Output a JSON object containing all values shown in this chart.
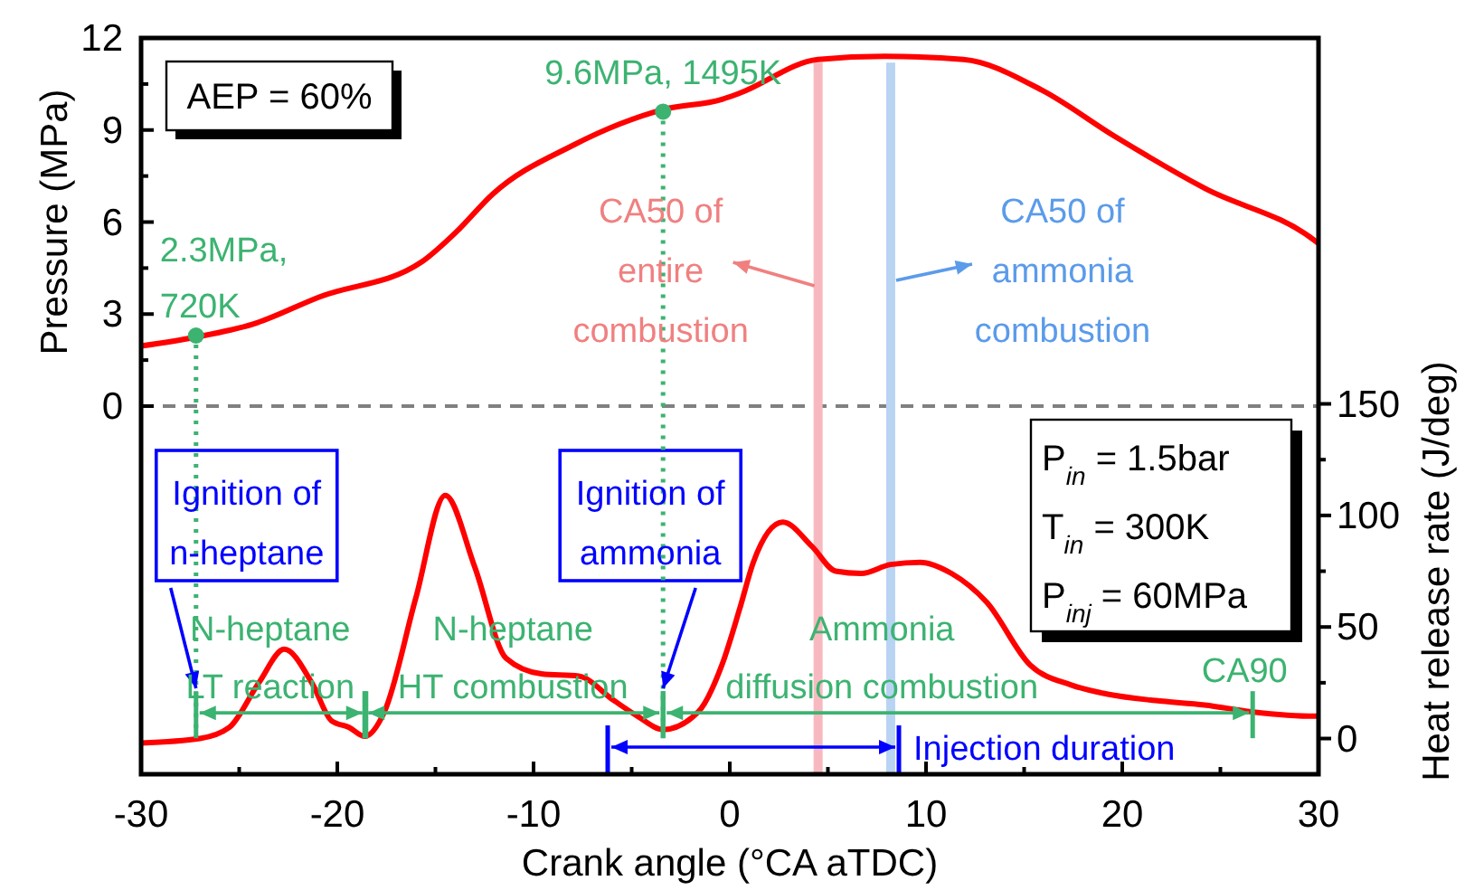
{
  "chart_data": {
    "type": "line",
    "xlabel": "Crank angle (°CA aTDC)",
    "ylabel": "Pressure (MPa)",
    "y2label": "Heat release rate (J/deg)",
    "xlim": [
      -30,
      30
    ],
    "xticks": [
      -30,
      {
        "value": -25,
        "label": null
      },
      -20,
      {
        "value": -15,
        "label": null
      },
      -10,
      {
        "value": -5,
        "label": null
      },
      0,
      {
        "value": 5,
        "label": null
      },
      10,
      {
        "value": 15,
        "label": null
      },
      20,
      {
        "value": 25,
        "label": null
      },
      30
    ],
    "ylim": [
      -12,
      12
    ],
    "yticks": [
      0,
      {
        "value": 1.5,
        "label": null
      },
      3,
      {
        "value": 4.5,
        "label": null
      },
      6,
      {
        "value": 7.5,
        "label": null
      },
      9,
      {
        "value": 10.5,
        "label": null
      },
      12
    ],
    "y2lim": [
      -16,
      314
    ],
    "y2ticks": [
      0,
      {
        "value": 25,
        "label": null
      },
      50,
      {
        "value": 75,
        "label": null
      },
      100,
      {
        "value": 125,
        "label": null
      },
      150
    ],
    "series": [
      {
        "color": "#ff0000",
        "x": [
          -30,
          -27.2,
          -24.3,
          -20.9,
          -15.7,
          -13.9,
          -12.1,
          -8,
          -5.6,
          -3.4,
          -0.4,
          0.5,
          4.5,
          7.9,
          11.9,
          15.9,
          19.6,
          24.2,
          29.8,
          30
        ],
        "values": [
          1.96,
          2.25,
          2.67,
          3.56,
          4.7,
          5.7,
          6.9,
          8.5,
          9.2,
          9.67,
          10,
          10.2,
          11.3,
          11.4,
          11.3,
          10.3,
          8.8,
          7.1,
          5.4,
          5.3
        ]
      },
      {
        "axis": "y2",
        "color": "#ff0000",
        "x": [
          -30,
          -27,
          -25.5,
          -24,
          -22.7,
          -21.3,
          -20.3,
          -19.4,
          -18.6,
          -17.6,
          -16,
          -14.5,
          -13,
          -11.4,
          -9.6,
          -7.7,
          -5.9,
          -4.7,
          -3.4,
          -1.6,
          -0.4,
          0.5,
          1.2,
          2.7,
          4.2,
          5.4,
          6.7,
          8.2,
          9.7,
          11.3,
          13.1,
          15.3,
          17.4,
          19.2,
          21.7,
          24.2,
          26.6,
          29.8,
          30
        ],
        "values": [
          -2,
          0,
          5,
          25,
          40,
          25,
          8,
          5,
          1,
          12,
          63,
          109,
          77,
          36,
          29,
          28,
          17,
          10,
          4,
          12,
          33,
          58,
          79,
          97,
          86,
          75,
          74,
          78,
          79,
          74,
          61,
          33,
          24,
          20,
          17,
          15,
          12,
          10,
          10
        ]
      },
      {
        "type": "scatter",
        "color": "#3cb371",
        "marker": "circle",
        "x": [
          -27.2,
          -3.4
        ],
        "values": [
          2.3,
          9.6
        ]
      }
    ],
    "ref_lines": [
      {
        "axis": "y",
        "value": 0,
        "color": "#808080",
        "line_style": "dashed"
      },
      {
        "axis": "x",
        "value": 4.5,
        "color": "#f7b9bf",
        "line_style": "solid",
        "label": "CA50 of\nentire\ncombustion"
      },
      {
        "axis": "x",
        "value": 8.2,
        "color": "#b9d3f3",
        "line_style": "solid",
        "label": "CA50 of\nammonia\ncombustion"
      },
      {
        "axis": "x",
        "value": -27.2,
        "color": "#3cb371",
        "line_style": "dotted"
      },
      {
        "axis": "x",
        "value": -3.4,
        "color": "#3cb371",
        "line_style": "dotted"
      }
    ],
    "annotations": [
      {
        "text": "2.3MPa,\n720K",
        "x": -27.2,
        "y": 2.3
      },
      {
        "text": "9.6MPa, 1495K",
        "x": -3.4,
        "y": 9.6
      },
      "AEP = 60%",
      {
        "text": "Ignition of\nn-heptane",
        "x": -27.2,
        "y": -9.2
      },
      {
        "text": "Ignition of\nammonia",
        "x": -3.4,
        "y": -9.2
      },
      {
        "text": "N-heptane\nLT reaction",
        "x": -27.2,
        "y": -10
      },
      {
        "text": "N-heptane\nHT combustion",
        "x": -3.4,
        "y": -10
      },
      {
        "text": "Ammonia\ndiffusion combustion",
        "x": -3.4,
        "y": -10
      },
      {
        "text": "CA90",
        "x": 26.6,
        "y": -10
      },
      "Injection duration",
      "P$_{in}$ = 1.5bar",
      "T$_{in}$ = 300K",
      "P$_{inj}$ = 60MPa"
    ]
  }
}
